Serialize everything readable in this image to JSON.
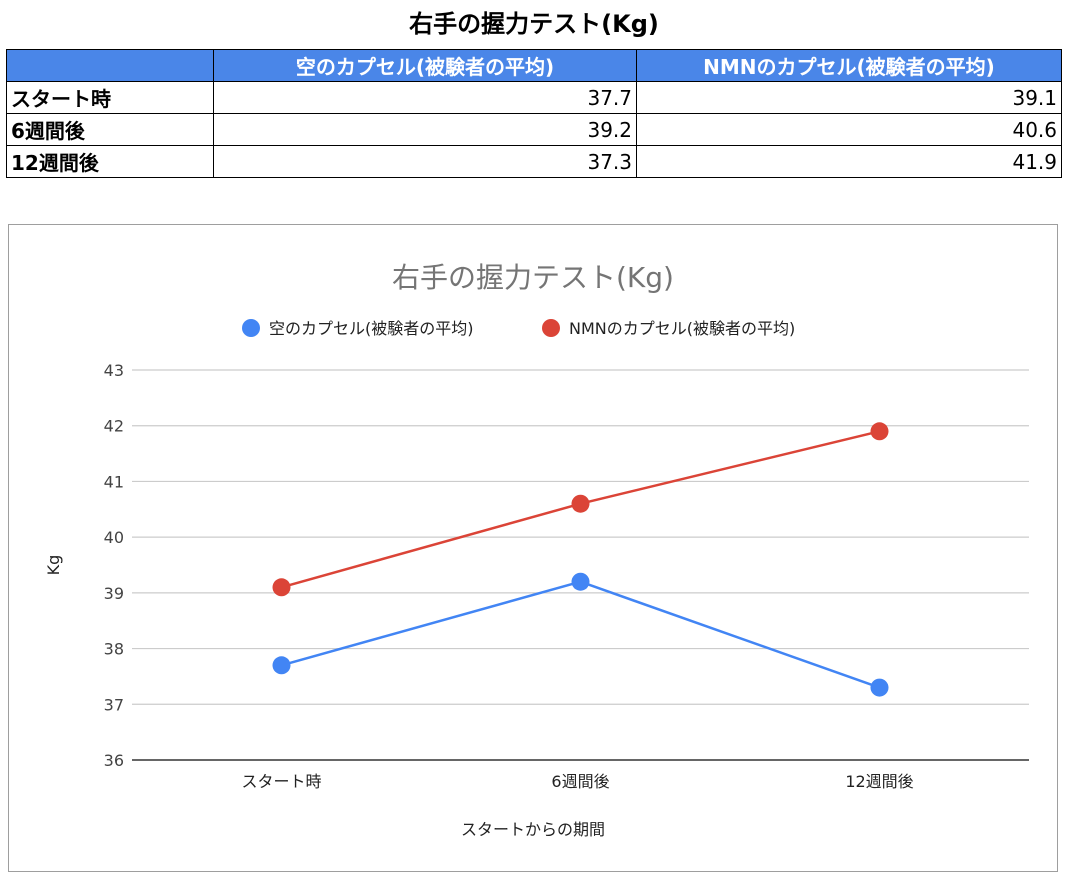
{
  "title": "右手の握力テスト(Kg)",
  "table": {
    "headers": [
      "",
      "空のカプセル(被験者の平均)",
      "NMNのカプセル(被験者の平均)"
    ],
    "rows": [
      {
        "label": "スタート時",
        "values": [
          "37.7",
          "39.1"
        ]
      },
      {
        "label": "6週間後",
        "values": [
          "39.2",
          "40.6"
        ]
      },
      {
        "label": "12週間後",
        "values": [
          "37.3",
          "41.9"
        ]
      }
    ]
  },
  "colors": {
    "header_bg": "#4a86e8",
    "series_blue": "#4285f4",
    "series_red": "#db4437",
    "grid": "#cccccc"
  },
  "chart_data": {
    "type": "line",
    "title": "右手の握力テスト(Kg)",
    "xlabel": "スタートからの期間",
    "ylabel": "Kg",
    "categories": [
      "スタート時",
      "6週間後",
      "12週間後"
    ],
    "series": [
      {
        "name": "空のカプセル(被験者の平均)",
        "values": [
          37.7,
          39.2,
          37.3
        ],
        "color": "#4285f4"
      },
      {
        "name": "NMNのカプセル(被験者の平均)",
        "values": [
          39.1,
          40.6,
          41.9
        ],
        "color": "#db4437"
      }
    ],
    "ylim": [
      36,
      43
    ],
    "yticks": [
      "36",
      "37",
      "38",
      "39",
      "40",
      "41",
      "42",
      "43"
    ],
    "grid": true,
    "legend": "top"
  }
}
